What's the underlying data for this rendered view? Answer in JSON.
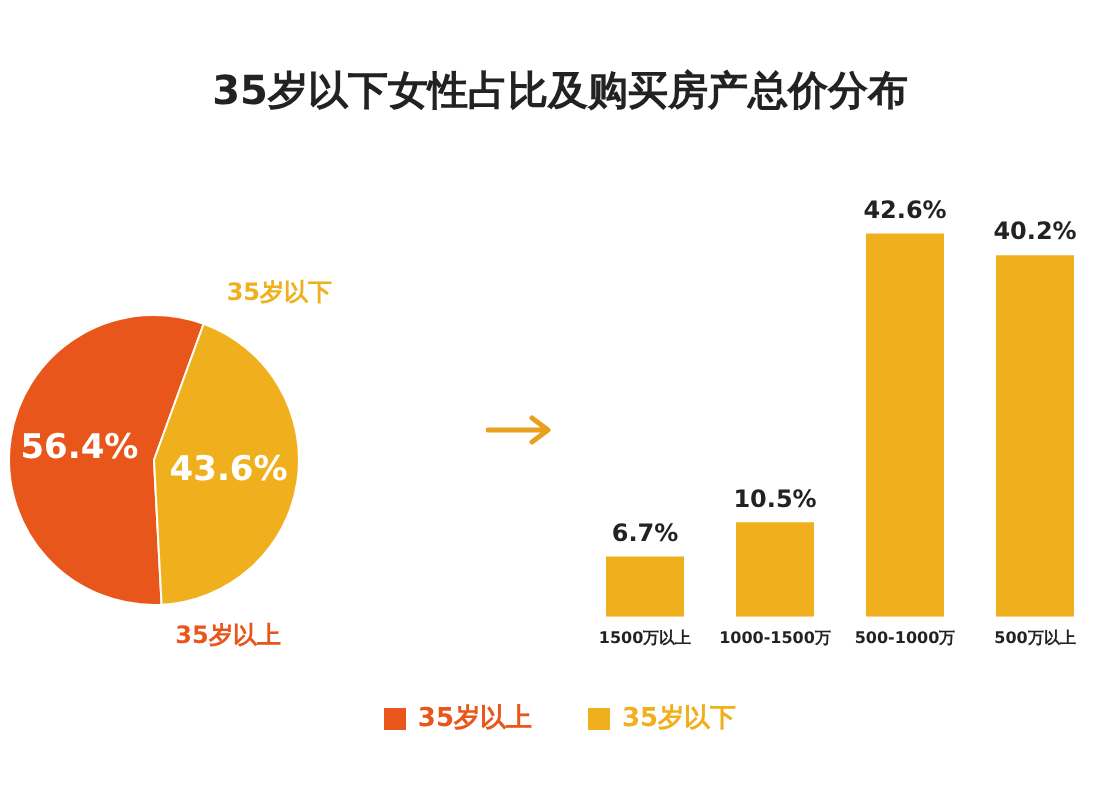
{
  "chart_data": [
    {
      "type": "pie",
      "title": "35岁以下女性占比及购买房产总价分布",
      "categories": [
        "35岁以上",
        "35岁以下"
      ],
      "values": [
        56.4,
        43.6
      ],
      "colors": [
        "#e8561c",
        "#f0b01e"
      ],
      "value_labels": [
        "56.4%",
        "43.6%"
      ],
      "legend": "bottom"
    },
    {
      "type": "bar",
      "categories": [
        "1500万以上",
        "1000-1500万",
        "500-1000万",
        "500万以上"
      ],
      "values": [
        6.7,
        10.5,
        42.6,
        40.2
      ],
      "color": "#f0b01e",
      "value_labels": [
        "6.7%",
        "10.5%",
        "42.6%",
        "40.2%"
      ]
    }
  ]
}
